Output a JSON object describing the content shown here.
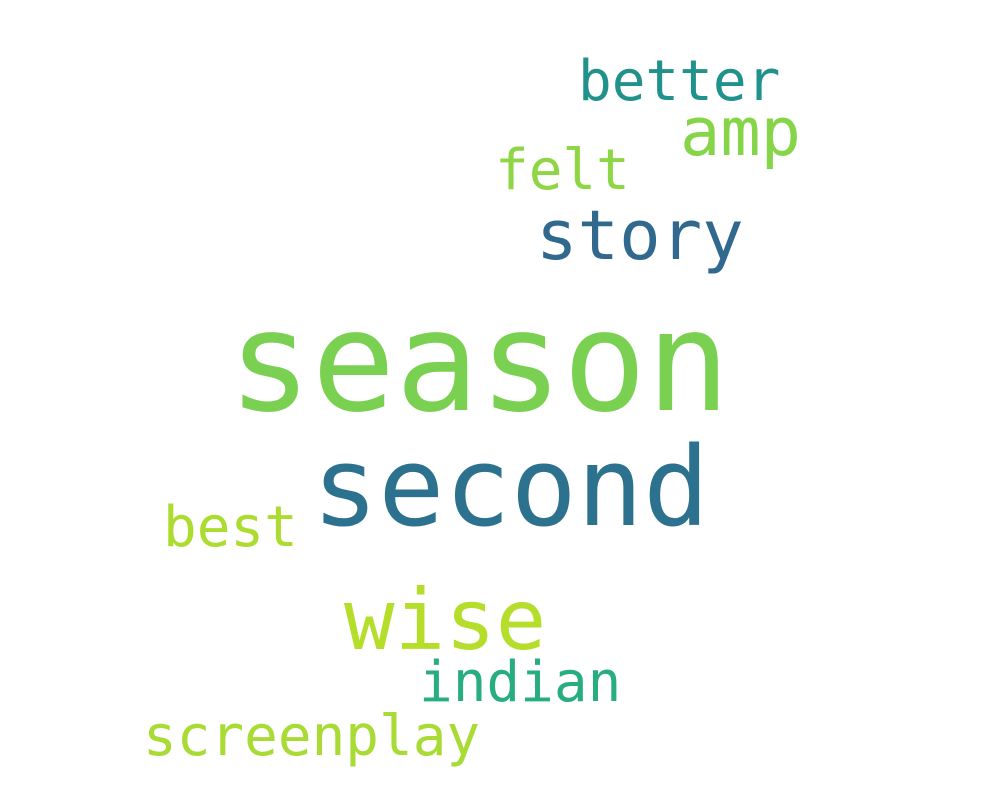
{
  "word_cloud": {
    "words": [
      {
        "text": "season",
        "color": "#7ad151"
      },
      {
        "text": "second",
        "color": "#2c728e"
      },
      {
        "text": "wise",
        "color": "#b5de2b"
      },
      {
        "text": "story",
        "color": "#31688e"
      },
      {
        "text": "amp",
        "color": "#86d549"
      },
      {
        "text": "better",
        "color": "#21918c"
      },
      {
        "text": "felt",
        "color": "#8ed645"
      },
      {
        "text": "best",
        "color": "#addc30"
      },
      {
        "text": "indian",
        "color": "#27ad81"
      },
      {
        "text": "screenplay",
        "color": "#a8db34"
      }
    ]
  }
}
